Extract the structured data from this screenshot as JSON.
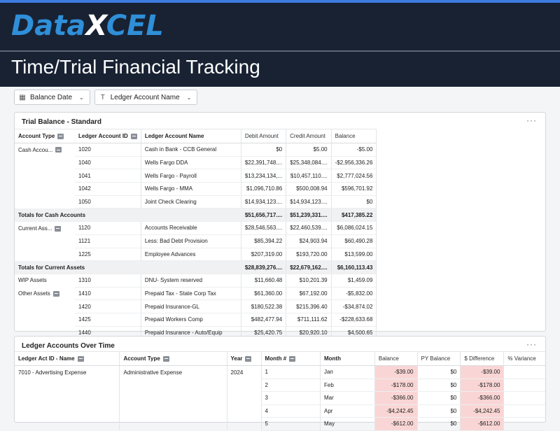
{
  "brand": {
    "logo_left": "Data",
    "logo_x": "X",
    "logo_right": "CEL"
  },
  "page_title": "Time/Trial Financial Tracking",
  "filters": [
    {
      "label": "Balance Date",
      "icon": "calendar-icon"
    },
    {
      "label": "Ledger Account Name",
      "icon": "text-type-icon"
    }
  ],
  "trial_balance": {
    "title": "Trial Balance - Standard",
    "more": "···",
    "columns": [
      "Account Type",
      "Ledger Account ID",
      "Ledger Account Name",
      "Debit Amount",
      "Credit Amount",
      "Balance"
    ],
    "rows": [
      {
        "type": "Cash Accou...",
        "id": "1020",
        "name": "Cash in Bank - CCB General",
        "debit": "$0",
        "credit": "$5.00",
        "balance": "-$5.00"
      },
      {
        "type": "",
        "id": "1040",
        "name": "Wells Fargo DDA",
        "debit": "$22,391,748....",
        "credit": "$25,348,084....",
        "balance": "-$2,956,336.26"
      },
      {
        "type": "",
        "id": "1041",
        "name": "Wells Fargo - Payroll",
        "debit": "$13,234,134,...",
        "credit": "$10,457,110....",
        "balance": "$2,777,024.56"
      },
      {
        "type": "",
        "id": "1042",
        "name": "Wells Fargo - MMA",
        "debit": "$1,096,710.86",
        "credit": "$500,008.94",
        "balance": "$596,701.92"
      },
      {
        "type": "",
        "id": "1050",
        "name": "Joint Check Clearing",
        "debit": "$14,934,123....",
        "credit": "$14,934,123....",
        "balance": "$0"
      },
      {
        "total": true,
        "label": "Totals for Cash Accounts",
        "debit": "$51,656,717....",
        "credit": "$51,239,331....",
        "balance": "$417,385.22"
      },
      {
        "type": "Current Ass...",
        "id": "1120",
        "name": "Accounts Receivable",
        "debit": "$28,546,563....",
        "credit": "$22,460,539....",
        "balance": "$6,086,024.15"
      },
      {
        "type": "",
        "id": "1121",
        "name": "Less: Bad Debt Provision",
        "debit": "$85,394.22",
        "credit": "$24,903.94",
        "balance": "$60,490.28"
      },
      {
        "type": "",
        "id": "1225",
        "name": "Employee Advances",
        "debit": "$207,319.00",
        "credit": "$193,720.00",
        "balance": "$13,599.00"
      },
      {
        "total": true,
        "label": "Totals for Current Assets",
        "debit": "$28,839,276....",
        "credit": "$22,679,162....",
        "balance": "$6,160,113.43"
      },
      {
        "type": "WIP Assets",
        "id": "1310",
        "name": "DNU- System reserved",
        "debit": "$11,660.48",
        "credit": "$10,201.39",
        "balance": "$1,459.09"
      },
      {
        "type": "Other Assets",
        "id": "1410",
        "name": "Prepaid Tax - State Corp Tax",
        "debit": "$61,360.00",
        "credit": "$67,192.00",
        "balance": "-$5,832.00"
      },
      {
        "type": "",
        "id": "1420",
        "name": "Prepaid Insurance-GL",
        "debit": "$180,522.38",
        "credit": "$215,396.40",
        "balance": "-$34,874.02"
      },
      {
        "type": "",
        "id": "1425",
        "name": "Prepaid Workers Comp",
        "debit": "$482,477.94",
        "credit": "$711,111.62",
        "balance": "-$228,633.68"
      },
      {
        "type": "",
        "id": "1440",
        "name": "Prepaid Insurance - Auto/Equip",
        "debit": "$25,420.75",
        "credit": "$20,920.10",
        "balance": "$4,500.65"
      }
    ]
  },
  "over_time": {
    "title": "Ledger Accounts Over Time",
    "more": "···",
    "columns": [
      "Ledger Act ID - Name",
      "Account Type",
      "Year",
      "Month #",
      "Month",
      "Balance",
      "PY Balance",
      "$ Difference",
      "% Variance"
    ],
    "rows": [
      {
        "act": "7010 - Advertising Expense",
        "type": "Administrative Expense",
        "year": "2024",
        "mnum": "1",
        "month": "Jan",
        "balance": "-$39.00",
        "py": "$0",
        "diff": "-$39.00"
      },
      {
        "act": "",
        "type": "",
        "year": "",
        "mnum": "2",
        "month": "Feb",
        "balance": "-$178.00",
        "py": "$0",
        "diff": "-$178.00"
      },
      {
        "act": "",
        "type": "",
        "year": "",
        "mnum": "3",
        "month": "Mar",
        "balance": "-$366.00",
        "py": "$0",
        "diff": "-$366.00"
      },
      {
        "act": "",
        "type": "",
        "year": "",
        "mnum": "4",
        "month": "Apr",
        "balance": "-$4,242.45",
        "py": "$0",
        "diff": "-$4,242.45"
      },
      {
        "act": "",
        "type": "",
        "year": "",
        "mnum": "5",
        "month": "May",
        "balance": "-$612.00",
        "py": "$0",
        "diff": "-$612.00"
      }
    ]
  }
}
